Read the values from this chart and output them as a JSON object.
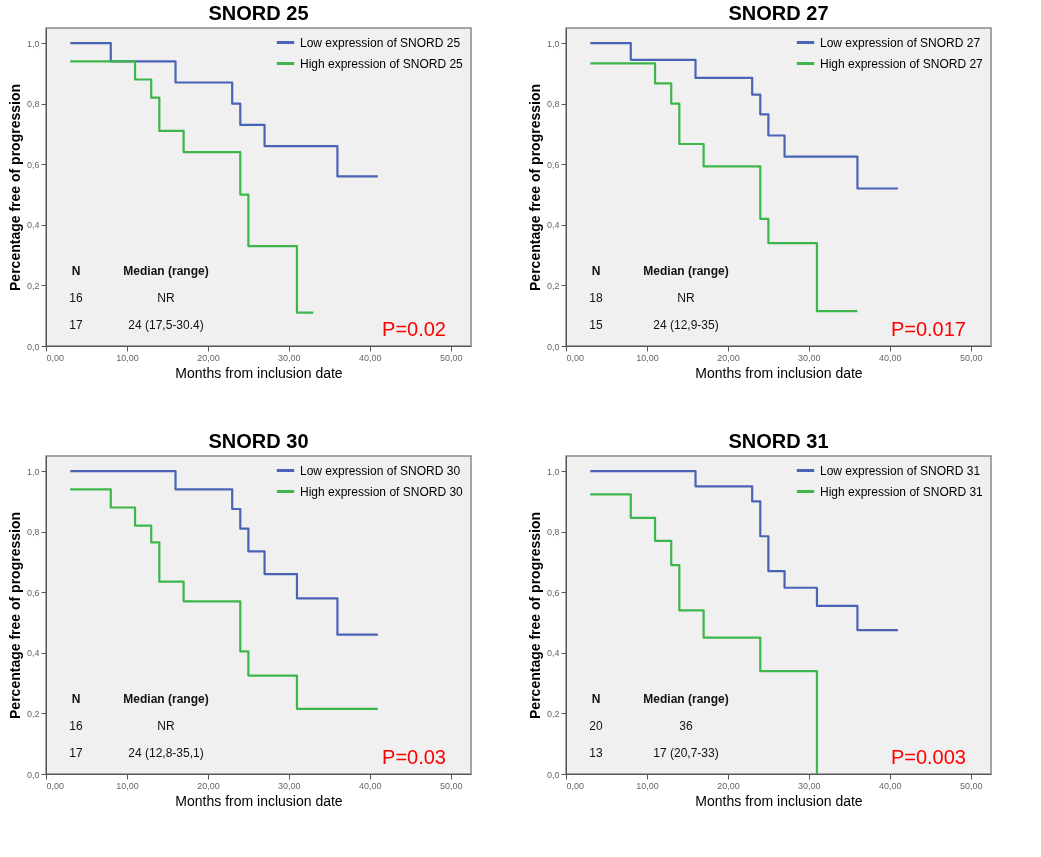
{
  "chart_data": [
    {
      "type": "step",
      "title": "SNORD 25",
      "xlabel": "Months from inclusion date",
      "ylabel": "Percentage free of progression",
      "xlim": [
        0,
        52.5
      ],
      "ylim": [
        0,
        1.05
      ],
      "xticks": [
        {
          "value": 0,
          "label": "0,00"
        },
        {
          "value": 10,
          "label": "10,00"
        },
        {
          "value": 20,
          "label": "20,00"
        },
        {
          "value": 30,
          "label": "30,00"
        },
        {
          "value": 40,
          "label": "40,00"
        },
        {
          "value": 50,
          "label": "50,00"
        }
      ],
      "yticks": [
        {
          "value": 0,
          "label": "0,0"
        },
        {
          "value": 0.2,
          "label": "0,2"
        },
        {
          "value": 0.4,
          "label": "0,4"
        },
        {
          "value": 0.6,
          "label": "0,6"
        },
        {
          "value": 0.8,
          "label": "0,8"
        },
        {
          "value": 1,
          "label": "1,0"
        }
      ],
      "legend": "top right",
      "series": [
        {
          "name": "Low expression of SNORD 25",
          "color": "#4a63b5",
          "x": [
            3,
            8,
            16,
            23,
            24,
            27,
            36,
            41
          ],
          "values": [
            1,
            0.94,
            0.87,
            0.8,
            0.73,
            0.66,
            0.56,
            0.56
          ]
        },
        {
          "name": "High expression of  SNORD 25",
          "color": "#3cb54a",
          "x": [
            3,
            11,
            13,
            14,
            17,
            24,
            25,
            31,
            33
          ],
          "values": [
            0.94,
            0.88,
            0.82,
            0.71,
            0.64,
            0.5,
            0.33,
            0.11,
            0.11
          ]
        }
      ],
      "annotations": [
        "N",
        "Median (range)",
        "16",
        "NR",
        "17",
        "24 (17,5-30.4)",
        "P=0.02"
      ]
    },
    {
      "type": "step",
      "title": "SNORD 27",
      "xlabel": "Months from inclusion date",
      "ylabel": "Percentage free of progression",
      "xlim": [
        0,
        52.5
      ],
      "ylim": [
        0,
        1.05
      ],
      "xticks": [
        {
          "value": 0,
          "label": "0,00"
        },
        {
          "value": 10,
          "label": "10,00"
        },
        {
          "value": 20,
          "label": "20,00"
        },
        {
          "value": 30,
          "label": "30,00"
        },
        {
          "value": 40,
          "label": "40,00"
        },
        {
          "value": 50,
          "label": "50,00"
        }
      ],
      "yticks": [
        {
          "value": 0,
          "label": "0,0"
        },
        {
          "value": 0.2,
          "label": "0,2"
        },
        {
          "value": 0.4,
          "label": "0,4"
        },
        {
          "value": 0.6,
          "label": "0,6"
        },
        {
          "value": 0.8,
          "label": "0,8"
        },
        {
          "value": 1,
          "label": "1,0"
        }
      ],
      "legend": "top right",
      "series": [
        {
          "name": "Low expression of  SNORD 27",
          "color": "#4a63b5",
          "x": [
            3,
            8,
            16,
            23,
            24,
            25,
            27,
            36,
            41
          ],
          "values": [
            1,
            0.945,
            0.885,
            0.83,
            0.765,
            0.695,
            0.625,
            0.52,
            0.52
          ]
        },
        {
          "name": "High expression of  SNORD 27",
          "color": "#3cb54a",
          "x": [
            3,
            11,
            13,
            14,
            17,
            24,
            25,
            31,
            36
          ],
          "values": [
            0.933,
            0.867,
            0.8,
            0.667,
            0.593,
            0.42,
            0.34,
            0.115,
            0.115
          ]
        }
      ],
      "annotations": [
        "N",
        "Median (range)",
        "18",
        "NR",
        "15",
        "24 (12,9-35)",
        "P=0.017"
      ]
    },
    {
      "type": "step",
      "title": "SNORD 30",
      "xlabel": "Months from inclusion date",
      "ylabel": "Percentage free of progression",
      "xlim": [
        0,
        52.5
      ],
      "ylim": [
        0,
        1.05
      ],
      "xticks": [
        {
          "value": 0,
          "label": "0,00"
        },
        {
          "value": 10,
          "label": "10,00"
        },
        {
          "value": 20,
          "label": "20,00"
        },
        {
          "value": 30,
          "label": "30,00"
        },
        {
          "value": 40,
          "label": "40,00"
        },
        {
          "value": 50,
          "label": "50,00"
        }
      ],
      "yticks": [
        {
          "value": 0,
          "label": "0,0"
        },
        {
          "value": 0.2,
          "label": "0,2"
        },
        {
          "value": 0.4,
          "label": "0,4"
        },
        {
          "value": 0.6,
          "label": "0,6"
        },
        {
          "value": 0.8,
          "label": "0,8"
        },
        {
          "value": 1,
          "label": "1,0"
        }
      ],
      "legend": "top right",
      "series": [
        {
          "name": "Low expression of SNORD 30",
          "color": "#4a63b5",
          "x": [
            3,
            16,
            23,
            24,
            25,
            27,
            31,
            36,
            41
          ],
          "values": [
            1,
            0.94,
            0.875,
            0.81,
            0.735,
            0.66,
            0.58,
            0.46,
            0.46
          ]
        },
        {
          "name": "High expression of  SNORD 30",
          "color": "#3cb54a",
          "x": [
            3,
            8,
            11,
            13,
            14,
            17,
            24,
            25,
            31,
            41
          ],
          "values": [
            0.94,
            0.88,
            0.82,
            0.765,
            0.635,
            0.57,
            0.405,
            0.325,
            0.215,
            0.215
          ]
        }
      ],
      "annotations": [
        "N",
        "Median (range)",
        "16",
        "NR",
        "17",
        "24 (12,8-35,1)",
        "P=0.03"
      ]
    },
    {
      "type": "step",
      "title": "SNORD 31",
      "xlabel": "Months from inclusion date",
      "ylabel": "Percentage free of progression",
      "xlim": [
        0,
        52.5
      ],
      "ylim": [
        0,
        1.05
      ],
      "xticks": [
        {
          "value": 0,
          "label": "0,00"
        },
        {
          "value": 10,
          "label": "10,00"
        },
        {
          "value": 20,
          "label": "20,00"
        },
        {
          "value": 30,
          "label": "30,00"
        },
        {
          "value": 40,
          "label": "40,00"
        },
        {
          "value": 50,
          "label": "50,00"
        }
      ],
      "yticks": [
        {
          "value": 0,
          "label": "0,0"
        },
        {
          "value": 0.2,
          "label": "0,2"
        },
        {
          "value": 0.4,
          "label": "0,4"
        },
        {
          "value": 0.6,
          "label": "0,6"
        },
        {
          "value": 0.8,
          "label": "0,8"
        },
        {
          "value": 1,
          "label": "1,0"
        }
      ],
      "legend": "top right",
      "series": [
        {
          "name": "Low expression of  SNORD 31",
          "color": "#4a63b5",
          "x": [
            3,
            16,
            23,
            24,
            25,
            27,
            31,
            36,
            41
          ],
          "values": [
            1,
            0.95,
            0.9,
            0.785,
            0.67,
            0.615,
            0.555,
            0.475,
            0.475
          ]
        },
        {
          "name": "High expression of  SNORD 31",
          "color": "#3cb54a",
          "x": [
            3,
            8,
            11,
            13,
            14,
            17,
            24,
            31
          ],
          "values": [
            0.923,
            0.846,
            0.77,
            0.69,
            0.54,
            0.45,
            0.34,
            0
          ]
        }
      ],
      "annotations": [
        "N",
        "Median (range)",
        "20",
        "36",
        "13",
        "17 (20,7-33)",
        "P=0.003"
      ]
    }
  ]
}
